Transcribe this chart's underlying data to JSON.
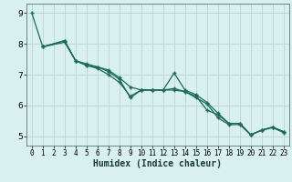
{
  "xlabel": "Humidex (Indice chaleur)",
  "bg_color": "#d8f0f0",
  "grid_color": "#c0d8d8",
  "line_color": "#1a6b5a",
  "xlim": [
    -0.5,
    23.5
  ],
  "ylim": [
    4.7,
    9.3
  ],
  "xticks": [
    0,
    1,
    2,
    3,
    4,
    5,
    6,
    7,
    8,
    9,
    10,
    11,
    12,
    13,
    14,
    15,
    16,
    17,
    18,
    19,
    20,
    21,
    22,
    23
  ],
  "yticks": [
    5,
    6,
    7,
    8,
    9
  ],
  "line1_x": [
    0,
    1,
    3,
    4,
    5,
    6,
    7,
    8,
    9,
    10,
    11,
    12,
    13,
    14,
    15,
    16,
    17,
    18,
    19,
    20,
    21,
    22,
    23
  ],
  "line1_y": [
    9.0,
    7.9,
    8.1,
    7.45,
    7.3,
    7.25,
    7.1,
    6.85,
    6.25,
    6.5,
    6.5,
    6.5,
    7.05,
    6.5,
    6.35,
    6.1,
    5.75,
    5.42,
    5.42,
    5.05,
    5.2,
    5.3,
    5.15
  ],
  "line2_x": [
    1,
    3,
    4,
    5,
    6,
    7,
    8,
    9,
    10,
    11,
    12,
    13,
    14,
    15,
    16,
    17,
    18,
    19,
    20,
    21,
    22,
    23
  ],
  "line2_y": [
    7.9,
    8.1,
    7.45,
    7.35,
    7.25,
    7.15,
    6.9,
    6.6,
    6.5,
    6.5,
    6.5,
    6.55,
    6.45,
    6.3,
    5.85,
    5.7,
    5.42,
    5.42,
    5.05,
    5.2,
    5.3,
    5.15
  ],
  "line3_x": [
    1,
    3,
    4,
    5,
    6,
    7,
    8,
    9,
    10,
    11,
    12,
    13,
    14,
    15,
    16,
    17,
    18,
    19,
    20,
    21,
    22,
    23
  ],
  "line3_y": [
    7.9,
    8.05,
    7.45,
    7.3,
    7.2,
    7.0,
    6.75,
    6.3,
    6.5,
    6.5,
    6.5,
    6.5,
    6.45,
    6.25,
    6.05,
    5.6,
    5.38,
    5.38,
    5.05,
    5.2,
    5.28,
    5.12
  ]
}
